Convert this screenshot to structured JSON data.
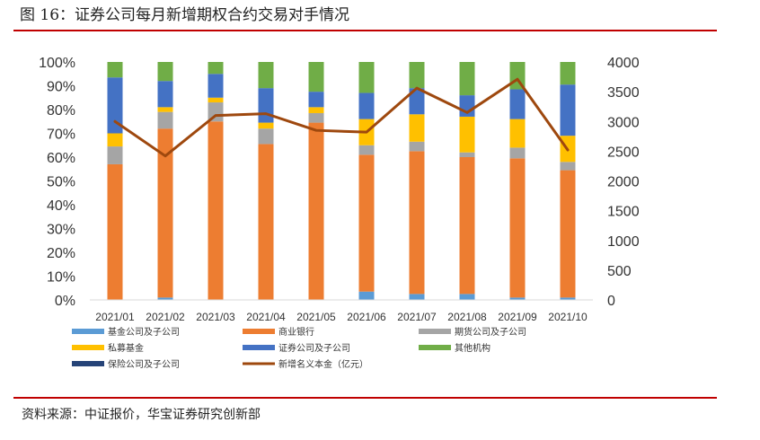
{
  "figure": {
    "title": "图 16：证券公司每月新增期权合约交易对手情况",
    "source": "资料来源：中证报价，华宝证券研究创新部"
  },
  "chart_data": {
    "type": "bar",
    "stacked": true,
    "percent_stacked": true,
    "categories": [
      "2021/01",
      "2021/02",
      "2021/03",
      "2021/04",
      "2021/05",
      "2021/06",
      "2021/07",
      "2021/08",
      "2021/09",
      "2021/10"
    ],
    "y_left": {
      "ylim": [
        0,
        100
      ],
      "ticks": [
        "0%",
        "10%",
        "20%",
        "30%",
        "40%",
        "50%",
        "60%",
        "70%",
        "80%",
        "90%",
        "100%"
      ]
    },
    "y_right": {
      "ylim": [
        0,
        4000
      ],
      "ticks": [
        "0",
        "500",
        "1000",
        "1500",
        "2000",
        "2500",
        "3000",
        "3500",
        "4000"
      ]
    },
    "series": [
      {
        "name": "基金公司及子公司",
        "color": "#5b9bd5",
        "axis": "left",
        "kind": "bar",
        "values": [
          0,
          1,
          0,
          0,
          0,
          3.5,
          2.5,
          2.5,
          1,
          1
        ]
      },
      {
        "name": "商业银行",
        "color": "#ed7d31",
        "axis": "left",
        "kind": "bar",
        "values": [
          57,
          71,
          75,
          65.5,
          74.5,
          57.5,
          60,
          57.5,
          58.5,
          53.5
        ]
      },
      {
        "name": "期货公司及子公司",
        "color": "#a5a5a5",
        "axis": "left",
        "kind": "bar",
        "values": [
          7.5,
          7,
          8,
          6.5,
          4,
          4,
          4,
          2,
          4.5,
          3.5
        ]
      },
      {
        "name": "私募基金",
        "color": "#ffc000",
        "axis": "left",
        "kind": "bar",
        "values": [
          5.5,
          2,
          2,
          2.5,
          2.5,
          11,
          11.5,
          15,
          12,
          11
        ]
      },
      {
        "name": "证券公司及子公司",
        "color": "#4472c4",
        "axis": "left",
        "kind": "bar",
        "values": [
          23.5,
          11,
          10,
          14.5,
          6.5,
          11,
          11,
          9,
          12.5,
          21.5
        ]
      },
      {
        "name": "其他机构",
        "color": "#70ad47",
        "axis": "left",
        "kind": "bar",
        "values": [
          6.5,
          8,
          5,
          11,
          12.5,
          13,
          11,
          14,
          11.5,
          9.5
        ]
      },
      {
        "name": "保险公司及子公司",
        "color": "#264478",
        "axis": "left",
        "kind": "bar",
        "values": [
          0,
          0,
          0,
          0,
          0,
          0,
          0,
          0,
          0,
          0
        ]
      },
      {
        "name": "新增名义本金（亿元）",
        "color": "#9e480e",
        "axis": "right",
        "kind": "line",
        "values": [
          3000,
          2420,
          3100,
          3130,
          2850,
          2820,
          3560,
          3150,
          3710,
          2520
        ]
      }
    ],
    "legend": {
      "position": "bottom",
      "rows": [
        [
          "基金公司及子公司",
          "商业银行",
          "期货公司及子公司"
        ],
        [
          "私募基金",
          "证券公司及子公司",
          "其他机构"
        ],
        [
          "保险公司及子公司",
          "新增名义本金（亿元）"
        ]
      ]
    },
    "grid": false
  }
}
